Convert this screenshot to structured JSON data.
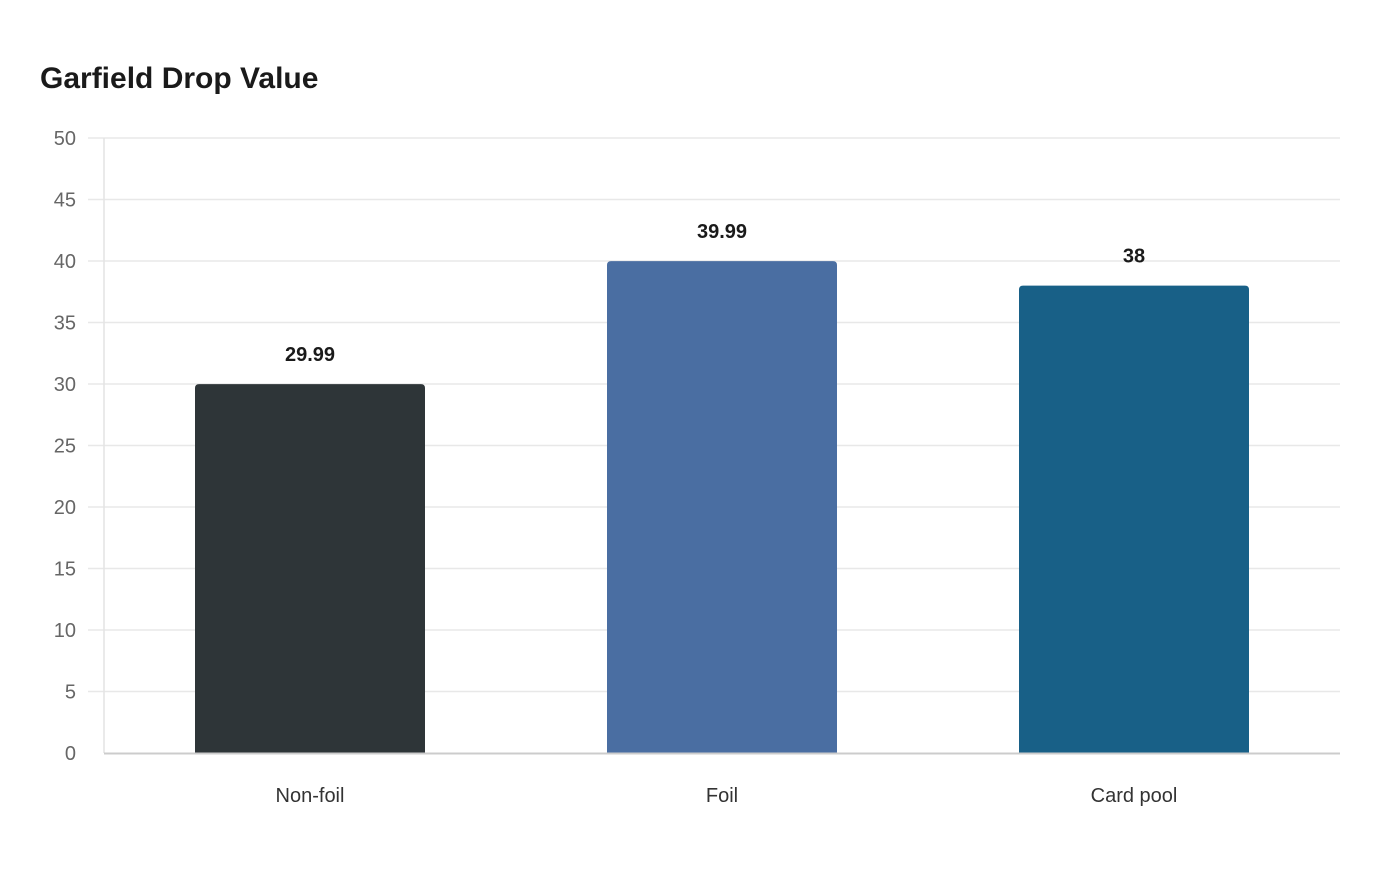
{
  "chart_data": {
    "type": "bar",
    "title": "Garfield Drop Value",
    "categories": [
      "Non-foil",
      "Foil",
      "Card pool"
    ],
    "values": [
      29.99,
      39.99,
      38
    ],
    "colors": [
      "#2e3538",
      "#4a6ea2",
      "#186087"
    ],
    "data_labels": [
      "29.99",
      "39.99",
      "38"
    ],
    "xlabel": "",
    "ylabel": "",
    "ylim": [
      0,
      50
    ],
    "yticks": [
      0,
      5,
      10,
      15,
      20,
      25,
      30,
      35,
      40,
      45,
      50
    ],
    "grid": true,
    "legend": "none"
  }
}
